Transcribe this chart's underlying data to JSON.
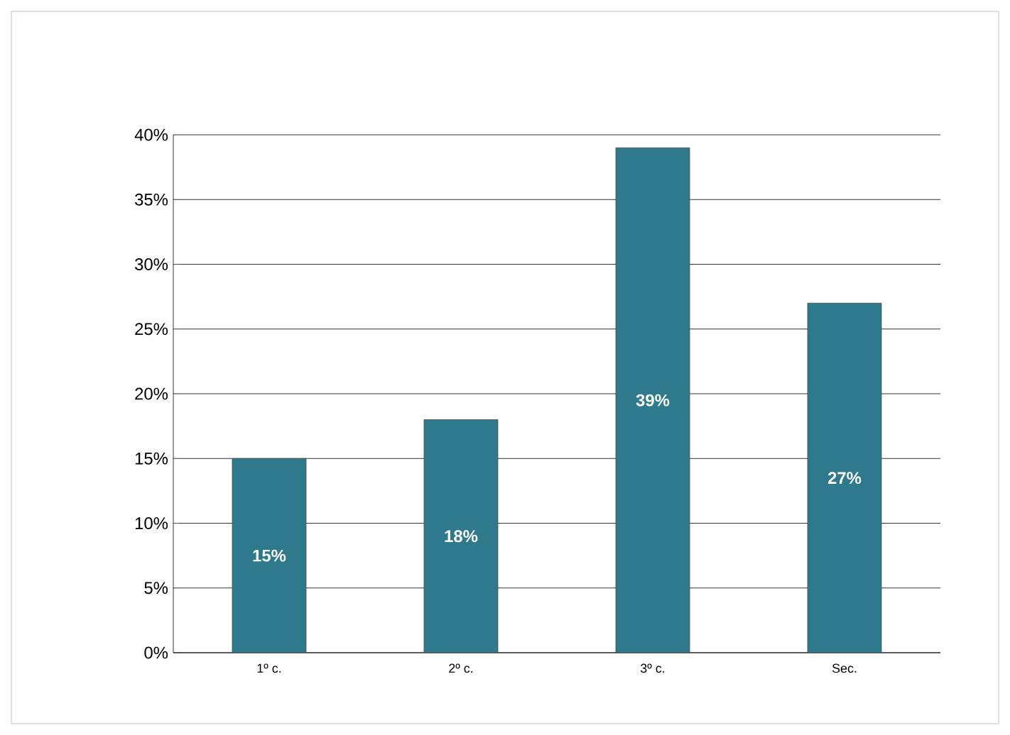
{
  "chart_data": {
    "type": "bar",
    "categories": [
      "1º c.",
      "2º c.",
      "3º c.",
      "Sec."
    ],
    "values": [
      15,
      18,
      39,
      27
    ],
    "value_labels": [
      "15%",
      "18%",
      "39%",
      "27%"
    ],
    "color": "#2e7a8c",
    "ylim": [
      0,
      40
    ],
    "yticks": [
      {
        "value": 0,
        "label": "0%"
      },
      {
        "value": 5,
        "label": "5%"
      },
      {
        "value": 10,
        "label": "10%"
      },
      {
        "value": 15,
        "label": "15%"
      },
      {
        "value": 20,
        "label": "20%"
      },
      {
        "value": 25,
        "label": "25%"
      },
      {
        "value": 30,
        "label": "30%"
      },
      {
        "value": 35,
        "label": "35%"
      },
      {
        "value": 40,
        "label": "40%"
      }
    ],
    "grid": "y"
  }
}
